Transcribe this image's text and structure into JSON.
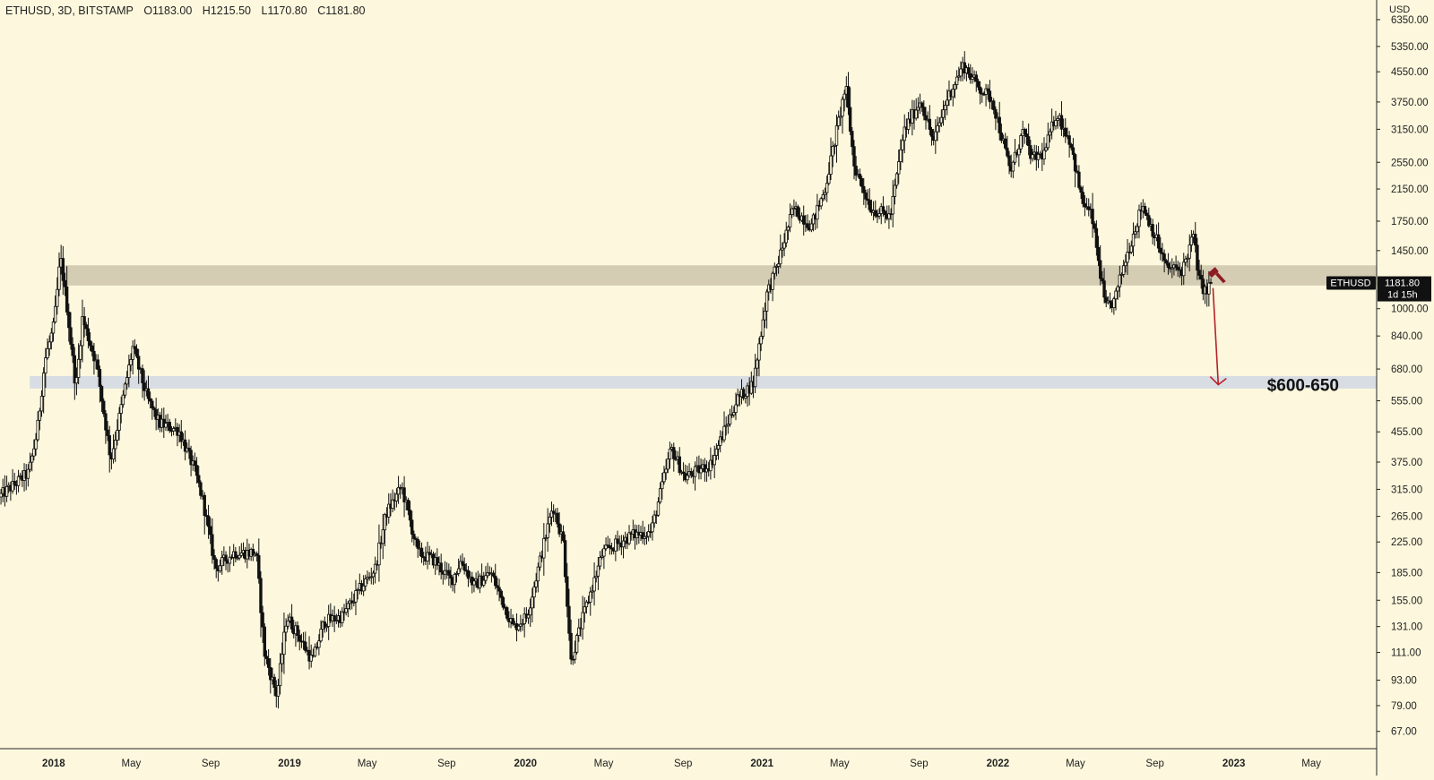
{
  "header": {
    "symbol_line": "ETHUSD, 3D, BITSTAMP",
    "open": "O1183.00",
    "high": "H1215.50",
    "low": "L1170.80",
    "close": "C1181.80"
  },
  "price_axis": {
    "unit_label": "USD",
    "ticks": [
      "6350.00",
      "5350.00",
      "4550.00",
      "3750.00",
      "3150.00",
      "2550.00",
      "2150.00",
      "1750.00",
      "1450.00",
      "1000.00",
      "840.00",
      "680.00",
      "555.00",
      "455.00",
      "375.00",
      "315.00",
      "265.00",
      "225.00",
      "185.00",
      "155.00",
      "131.00",
      "111.00",
      "93.00",
      "79.00",
      "67.00"
    ]
  },
  "time_axis": {
    "ticks": [
      "2018",
      "May",
      "Sep",
      "2019",
      "May",
      "Sep",
      "2020",
      "May",
      "Sep",
      "2021",
      "May",
      "Sep",
      "2022",
      "May",
      "Sep",
      "2023",
      "May"
    ]
  },
  "last_price_label": {
    "symbol": "ETHUSD",
    "price": "1181.80",
    "countdown": "1d 15h"
  },
  "annotation": {
    "target_text": "$600-650"
  },
  "colors": {
    "background": "#fdf8dd",
    "candle": "#111111",
    "resistance_zone": "#cfc6ae",
    "support_zone": "#d8dde3",
    "arrow": "#b5202b",
    "price_label_bg": "#111111"
  },
  "chart_data": {
    "type": "candlestick",
    "title": "ETHUSD, 3D, BITSTAMP",
    "scale": "log",
    "ylim": [
      60,
      7200
    ],
    "xlim": [
      "2017-10-10",
      "2023-08-10"
    ],
    "grid": false,
    "series": [
      {
        "ohlc_last": {
          "open": 1183.0,
          "high": 1215.5,
          "low": 1170.8,
          "close": 1181.8
        },
        "path": [
          [
            "2017-10-10",
            300
          ],
          [
            "2017-11-25",
            350
          ],
          [
            "2017-12-08",
            455
          ],
          [
            "2017-12-20",
            720
          ],
          [
            "2018-01-03",
            900
          ],
          [
            "2018-01-13",
            1390
          ],
          [
            "2018-01-22",
            1050
          ],
          [
            "2018-02-06",
            600
          ],
          [
            "2018-02-16",
            940
          ],
          [
            "2018-03-10",
            700
          ],
          [
            "2018-04-01",
            380
          ],
          [
            "2018-04-15",
            510
          ],
          [
            "2018-05-05",
            780
          ],
          [
            "2018-05-28",
            560
          ],
          [
            "2018-06-15",
            480
          ],
          [
            "2018-07-15",
            460
          ],
          [
            "2018-08-10",
            350
          ],
          [
            "2018-08-22",
            290
          ],
          [
            "2018-09-10",
            190
          ],
          [
            "2018-10-08",
            210
          ],
          [
            "2018-11-12",
            210
          ],
          [
            "2018-11-25",
            110
          ],
          [
            "2018-12-14",
            84
          ],
          [
            "2018-12-29",
            140
          ],
          [
            "2019-01-15",
            125
          ],
          [
            "2019-02-07",
            105
          ],
          [
            "2019-02-25",
            135
          ],
          [
            "2019-03-25",
            140
          ],
          [
            "2019-04-25",
            170
          ],
          [
            "2019-05-15",
            190
          ],
          [
            "2019-06-01",
            270
          ],
          [
            "2019-06-25",
            320
          ],
          [
            "2019-07-20",
            210
          ],
          [
            "2019-08-15",
            200
          ],
          [
            "2019-09-10",
            175
          ],
          [
            "2019-09-25",
            200
          ],
          [
            "2019-10-15",
            170
          ],
          [
            "2019-11-10",
            185
          ],
          [
            "2019-12-15",
            130
          ],
          [
            "2020-01-05",
            140
          ],
          [
            "2020-02-14",
            285
          ],
          [
            "2020-03-01",
            225
          ],
          [
            "2020-03-13",
            105
          ],
          [
            "2020-04-01",
            140
          ],
          [
            "2020-05-01",
            210
          ],
          [
            "2020-06-15",
            235
          ],
          [
            "2020-07-15",
            240
          ],
          [
            "2020-08-15",
            410
          ],
          [
            "2020-09-05",
            340
          ],
          [
            "2020-10-15",
            370
          ],
          [
            "2020-11-25",
            560
          ],
          [
            "2020-12-20",
            620
          ],
          [
            "2021-01-10",
            1100
          ],
          [
            "2021-01-25",
            1300
          ],
          [
            "2021-02-20",
            1900
          ],
          [
            "2021-03-20",
            1700
          ],
          [
            "2021-04-10",
            2150
          ],
          [
            "2021-05-12",
            4150
          ],
          [
            "2021-05-25",
            2500
          ],
          [
            "2021-06-20",
            1900
          ],
          [
            "2021-07-20",
            1800
          ],
          [
            "2021-08-10",
            3100
          ],
          [
            "2021-09-05",
            3800
          ],
          [
            "2021-09-25",
            2900
          ],
          [
            "2021-10-15",
            3800
          ],
          [
            "2021-11-10",
            4750
          ],
          [
            "2021-12-05",
            4100
          ],
          [
            "2021-12-25",
            3800
          ],
          [
            "2022-01-22",
            2400
          ],
          [
            "2022-02-10",
            3100
          ],
          [
            "2022-02-25",
            2600
          ],
          [
            "2022-03-15",
            2700
          ],
          [
            "2022-04-03",
            3500
          ],
          [
            "2022-04-25",
            2900
          ],
          [
            "2022-05-12",
            2000
          ],
          [
            "2022-05-28",
            1800
          ],
          [
            "2022-06-18",
            1000
          ],
          [
            "2022-07-02",
            1050
          ],
          [
            "2022-07-15",
            1300
          ],
          [
            "2022-08-14",
            1950
          ],
          [
            "2022-09-05",
            1550
          ],
          [
            "2022-09-20",
            1300
          ],
          [
            "2022-10-15",
            1280
          ],
          [
            "2022-11-01",
            1600
          ],
          [
            "2022-11-10",
            1200
          ],
          [
            "2022-11-21",
            1100
          ],
          [
            "2022-11-27",
            1182
          ]
        ]
      }
    ],
    "zones": [
      {
        "name": "resistance",
        "low": 1160,
        "high": 1320
      },
      {
        "name": "support",
        "low": 600,
        "high": 650
      }
    ],
    "annotations": [
      {
        "text": "$600-650",
        "from": [
          "2022-11-27",
          1182
        ],
        "to": [
          "2022-12-08",
          615
        ]
      }
    ]
  }
}
